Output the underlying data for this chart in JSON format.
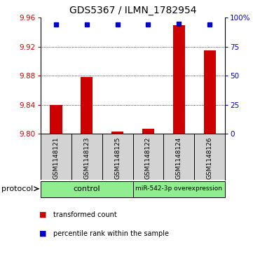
{
  "title": "GDS5367 / ILMN_1782954",
  "samples": [
    "GSM1148121",
    "GSM1148123",
    "GSM1148125",
    "GSM1148122",
    "GSM1148124",
    "GSM1148126"
  ],
  "transformed_counts": [
    9.84,
    9.878,
    9.803,
    9.807,
    9.95,
    9.915
  ],
  "percentile_ranks": [
    94,
    94,
    94,
    94,
    95,
    94
  ],
  "ylim_left": [
    9.8,
    9.96
  ],
  "yticks_left": [
    9.8,
    9.84,
    9.88,
    9.92,
    9.96
  ],
  "yticks_right": [
    0,
    25,
    50,
    75,
    100
  ],
  "ylim_right": [
    0,
    100
  ],
  "bar_color": "#cc0000",
  "dot_color": "#0000cc",
  "group_labels": [
    "control",
    "miR-542-3p overexpression"
  ],
  "group_color": "#90ee90",
  "protocol_label": "protocol",
  "legend_items": [
    {
      "label": "transformed count",
      "color": "#cc0000"
    },
    {
      "label": "percentile rank within the sample",
      "color": "#0000cc"
    }
  ],
  "title_fontsize": 10,
  "tick_fontsize": 7.5,
  "sample_fontsize": 6.5,
  "legend_fontsize": 7,
  "background_color": "#ffffff",
  "plot_bg_color": "#ffffff",
  "sample_bg_color": "#d3d3d3",
  "grid_color": "#000000",
  "ylabel_left_color": "#cc0000",
  "ylabel_right_color": "#0000cc",
  "bar_width": 0.4
}
